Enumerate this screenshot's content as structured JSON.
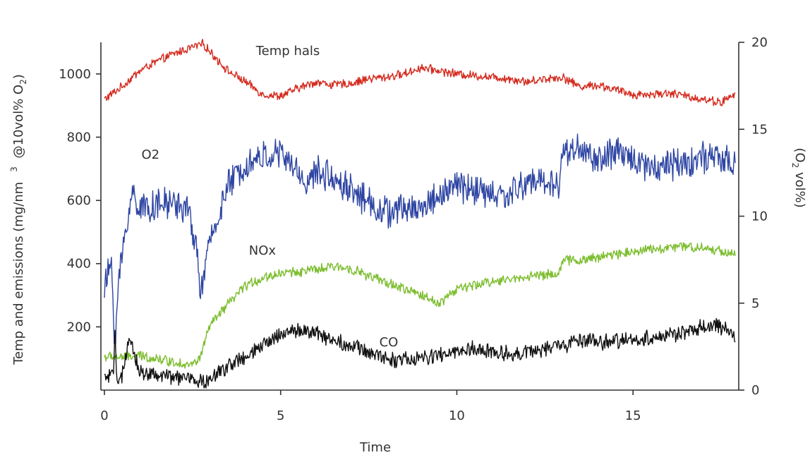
{
  "chart_data": {
    "type": "line",
    "xlabel": "Time",
    "ylabel_left": {
      "main": "Temp and emissions (mg/nm",
      "sup": "3",
      "after": " @10vol% O",
      "sub": "2",
      "close": ")"
    },
    "ylabel_right": {
      "open": "(O",
      "sub": "2",
      "after": " vol%)"
    },
    "xlim": [
      0,
      18
    ],
    "ylim_left": [
      0,
      1100
    ],
    "ylim_right": [
      0,
      20
    ],
    "x_ticks": [
      0,
      5,
      10,
      15
    ],
    "y_ticks_left": [
      200,
      400,
      600,
      800,
      1000
    ],
    "y_ticks_right": [
      0,
      5,
      10,
      15,
      20
    ],
    "series": [
      {
        "name": "Temp hals",
        "axis": "left",
        "color": "#d42a1e",
        "label_at": [
          4.3,
          1060
        ],
        "amplitude": 12,
        "x": [
          0,
          0.5,
          1,
          1.5,
          2,
          2.5,
          2.8,
          3,
          3.5,
          4,
          4.5,
          5,
          5.5,
          6,
          6.5,
          7,
          7.5,
          8,
          8.5,
          9,
          9.5,
          10,
          10.5,
          11,
          11.5,
          12,
          12.5,
          13,
          13.5,
          14,
          14.5,
          15,
          15.5,
          16,
          16.5,
          17,
          17.5,
          17.9
        ],
        "values": [
          920,
          960,
          1010,
          1040,
          1065,
          1085,
          1095,
          1070,
          1010,
          975,
          935,
          930,
          955,
          975,
          965,
          970,
          985,
          990,
          1000,
          1020,
          1010,
          1000,
          995,
          990,
          985,
          975,
          985,
          990,
          960,
          965,
          950,
          935,
          935,
          940,
          930,
          920,
          910,
          935
        ]
      },
      {
        "name": "O2",
        "axis": "right",
        "color": "#2e45a3",
        "label_at": [
          1.05,
          13.3
        ],
        "amplitude": 0.8,
        "x": [
          0,
          0.2,
          0.3,
          0.4,
          0.6,
          0.8,
          1,
          1.5,
          2,
          2.4,
          2.6,
          2.75,
          3,
          3.5,
          4,
          4.5,
          5,
          5.5,
          5.8,
          6,
          6.5,
          7,
          7.5,
          8,
          8.5,
          9,
          9.5,
          10,
          10.5,
          11,
          11.5,
          12,
          12.5,
          12.9,
          13,
          13.3,
          13.5,
          14,
          14.5,
          15,
          15.5,
          16,
          16.5,
          17,
          17.5,
          17.9
        ],
        "values": [
          5.8,
          7.4,
          2.6,
          6.2,
          9.2,
          11.4,
          10.5,
          10.6,
          10.8,
          10.2,
          8.2,
          5.6,
          8.6,
          11.7,
          13.0,
          13.4,
          13.6,
          12.5,
          11.8,
          12.6,
          12.2,
          11.6,
          10.8,
          10.2,
          10.4,
          10.5,
          11.2,
          11.8,
          11.5,
          11.2,
          11.2,
          12.0,
          12.0,
          11.8,
          13.5,
          14.0,
          13.8,
          13.2,
          13.6,
          13.4,
          12.8,
          13.0,
          13.1,
          13.4,
          13.2,
          13.0
        ]
      },
      {
        "name": "NOx",
        "axis": "left",
        "color": "#7cbd2e",
        "label_at": [
          4.1,
          428
        ],
        "amplitude": 14,
        "x": [
          0,
          0.5,
          1,
          1.5,
          2,
          2.5,
          2.7,
          3,
          3.5,
          4,
          4.5,
          5,
          5.5,
          6,
          6.5,
          7,
          7.5,
          8,
          8.5,
          9,
          9.5,
          10,
          10.5,
          11,
          11.5,
          12,
          12.5,
          12.9,
          13,
          13.5,
          14,
          14.5,
          15,
          15.5,
          16,
          16.5,
          17,
          17.5,
          17.9
        ],
        "values": [
          105,
          105,
          108,
          100,
          88,
          80,
          100,
          205,
          270,
          330,
          355,
          370,
          375,
          380,
          390,
          385,
          360,
          340,
          320,
          300,
          275,
          320,
          330,
          345,
          350,
          360,
          365,
          370,
          410,
          410,
          420,
          430,
          440,
          445,
          450,
          455,
          450,
          440,
          430
        ]
      },
      {
        "name": "CO",
        "axis": "left",
        "color": "#111111",
        "label_at": [
          7.8,
          138
        ],
        "amplitude": 22,
        "x": [
          0,
          0.25,
          0.3,
          0.35,
          0.5,
          0.7,
          0.8,
          1,
          1.5,
          2,
          2.5,
          2.8,
          3,
          3.5,
          4,
          4.5,
          5,
          5.5,
          6,
          6.5,
          7,
          7.5,
          8,
          8.5,
          9,
          9.5,
          10,
          10.5,
          11,
          11.5,
          12,
          12.5,
          13,
          13.5,
          14,
          14.5,
          15,
          15.5,
          16,
          16.5,
          17,
          17.5,
          17.9
        ],
        "values": [
          40,
          40,
          190,
          40,
          40,
          150,
          130,
          60,
          45,
          40,
          35,
          25,
          30,
          80,
          100,
          140,
          180,
          190,
          180,
          160,
          140,
          120,
          100,
          95,
          100,
          110,
          120,
          130,
          120,
          115,
          120,
          130,
          140,
          160,
          150,
          155,
          160,
          165,
          175,
          180,
          200,
          200,
          170
        ]
      }
    ]
  }
}
